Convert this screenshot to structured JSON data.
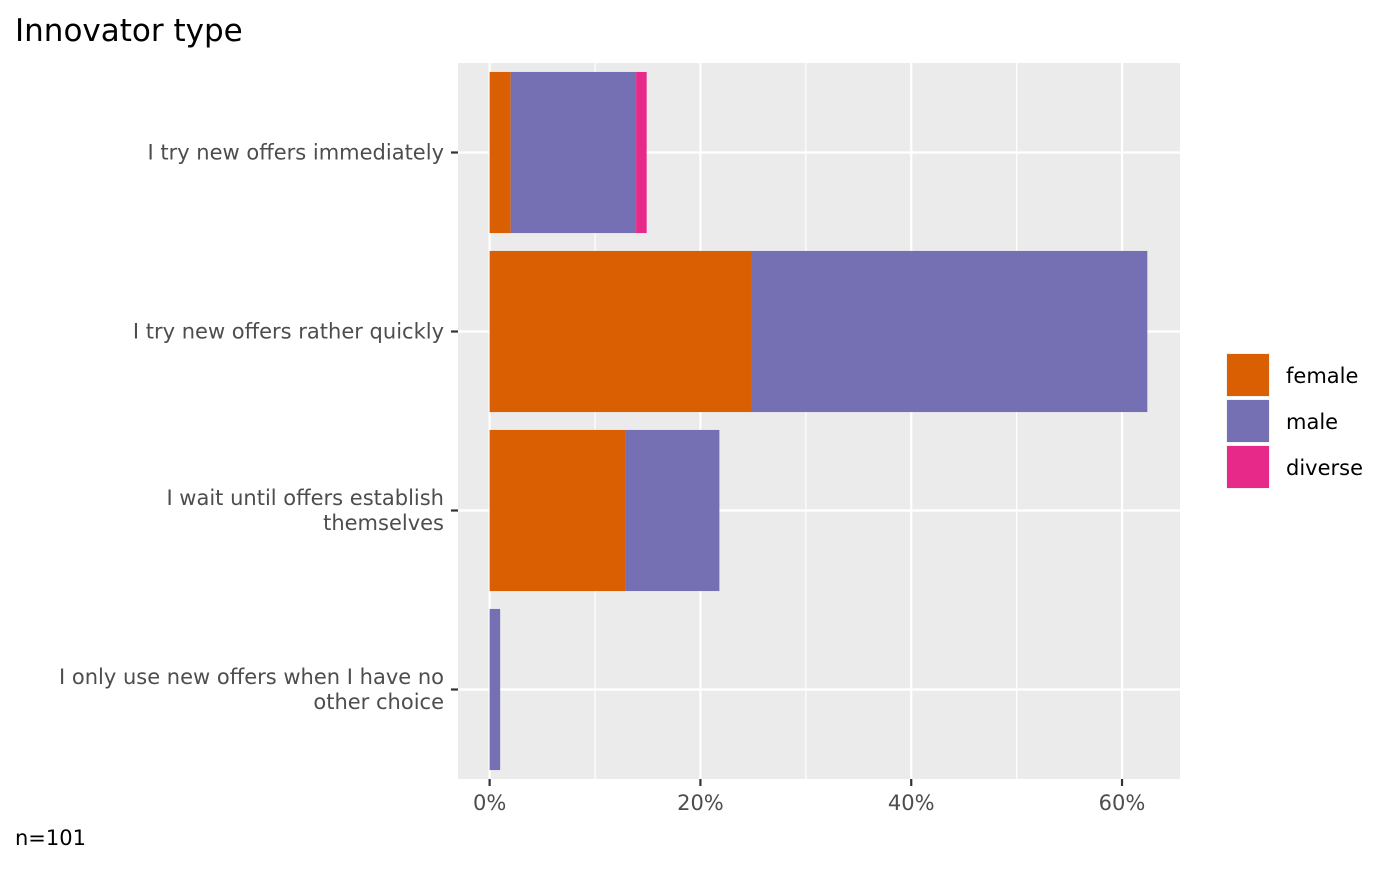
{
  "chart_data": {
    "type": "bar",
    "orientation": "horizontal",
    "stacked": true,
    "title": "Innovator type",
    "caption": "n=101",
    "categories": [
      [
        "I try new offers immediately"
      ],
      [
        "I try new offers rather quickly"
      ],
      [
        "I wait until offers establish",
        "themselves"
      ],
      [
        "I only use new offers when I have no",
        "other choice"
      ]
    ],
    "series": [
      {
        "name": "female",
        "color": "#D95F02",
        "values": [
          2.0,
          24.8,
          12.9,
          0.0
        ]
      },
      {
        "name": "male",
        "color": "#7570B3",
        "values": [
          11.9,
          37.6,
          8.9,
          1.0
        ]
      },
      {
        "name": "diverse",
        "color": "#E7298A",
        "values": [
          1.0,
          0.0,
          0.0,
          0.0
        ]
      }
    ],
    "x_ticks": [
      "0%",
      "20%",
      "40%",
      "60%"
    ],
    "x_tick_values": [
      0,
      20,
      40,
      60
    ],
    "xlim": [
      -3,
      65.5
    ],
    "xlabel": "",
    "ylabel": "",
    "grid": true,
    "panel_background": "#EBEBEB",
    "legend_position": "right"
  }
}
